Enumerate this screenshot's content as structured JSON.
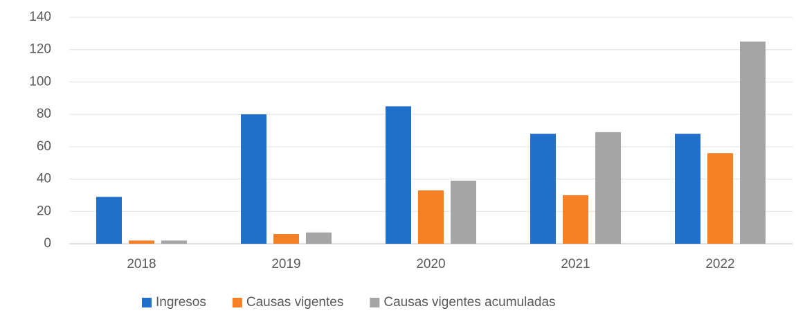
{
  "chart_data": {
    "type": "bar",
    "categories": [
      "2018",
      "2019",
      "2020",
      "2021",
      "2022"
    ],
    "series": [
      {
        "name": "Ingresos",
        "color": "#1f6fcb",
        "values": [
          29,
          80,
          85,
          68,
          68
        ]
      },
      {
        "name": "Causas vigentes",
        "color": "#f58025",
        "values": [
          2,
          6,
          33,
          30,
          56
        ]
      },
      {
        "name": "Causas vigentes acumuladas",
        "color": "#a5a5a5",
        "values": [
          2,
          7,
          39,
          69,
          125
        ]
      }
    ],
    "ylim": [
      0,
      140
    ],
    "yticks": [
      0,
      20,
      40,
      60,
      80,
      100,
      120,
      140
    ],
    "grid": true,
    "legend": "bottom"
  }
}
